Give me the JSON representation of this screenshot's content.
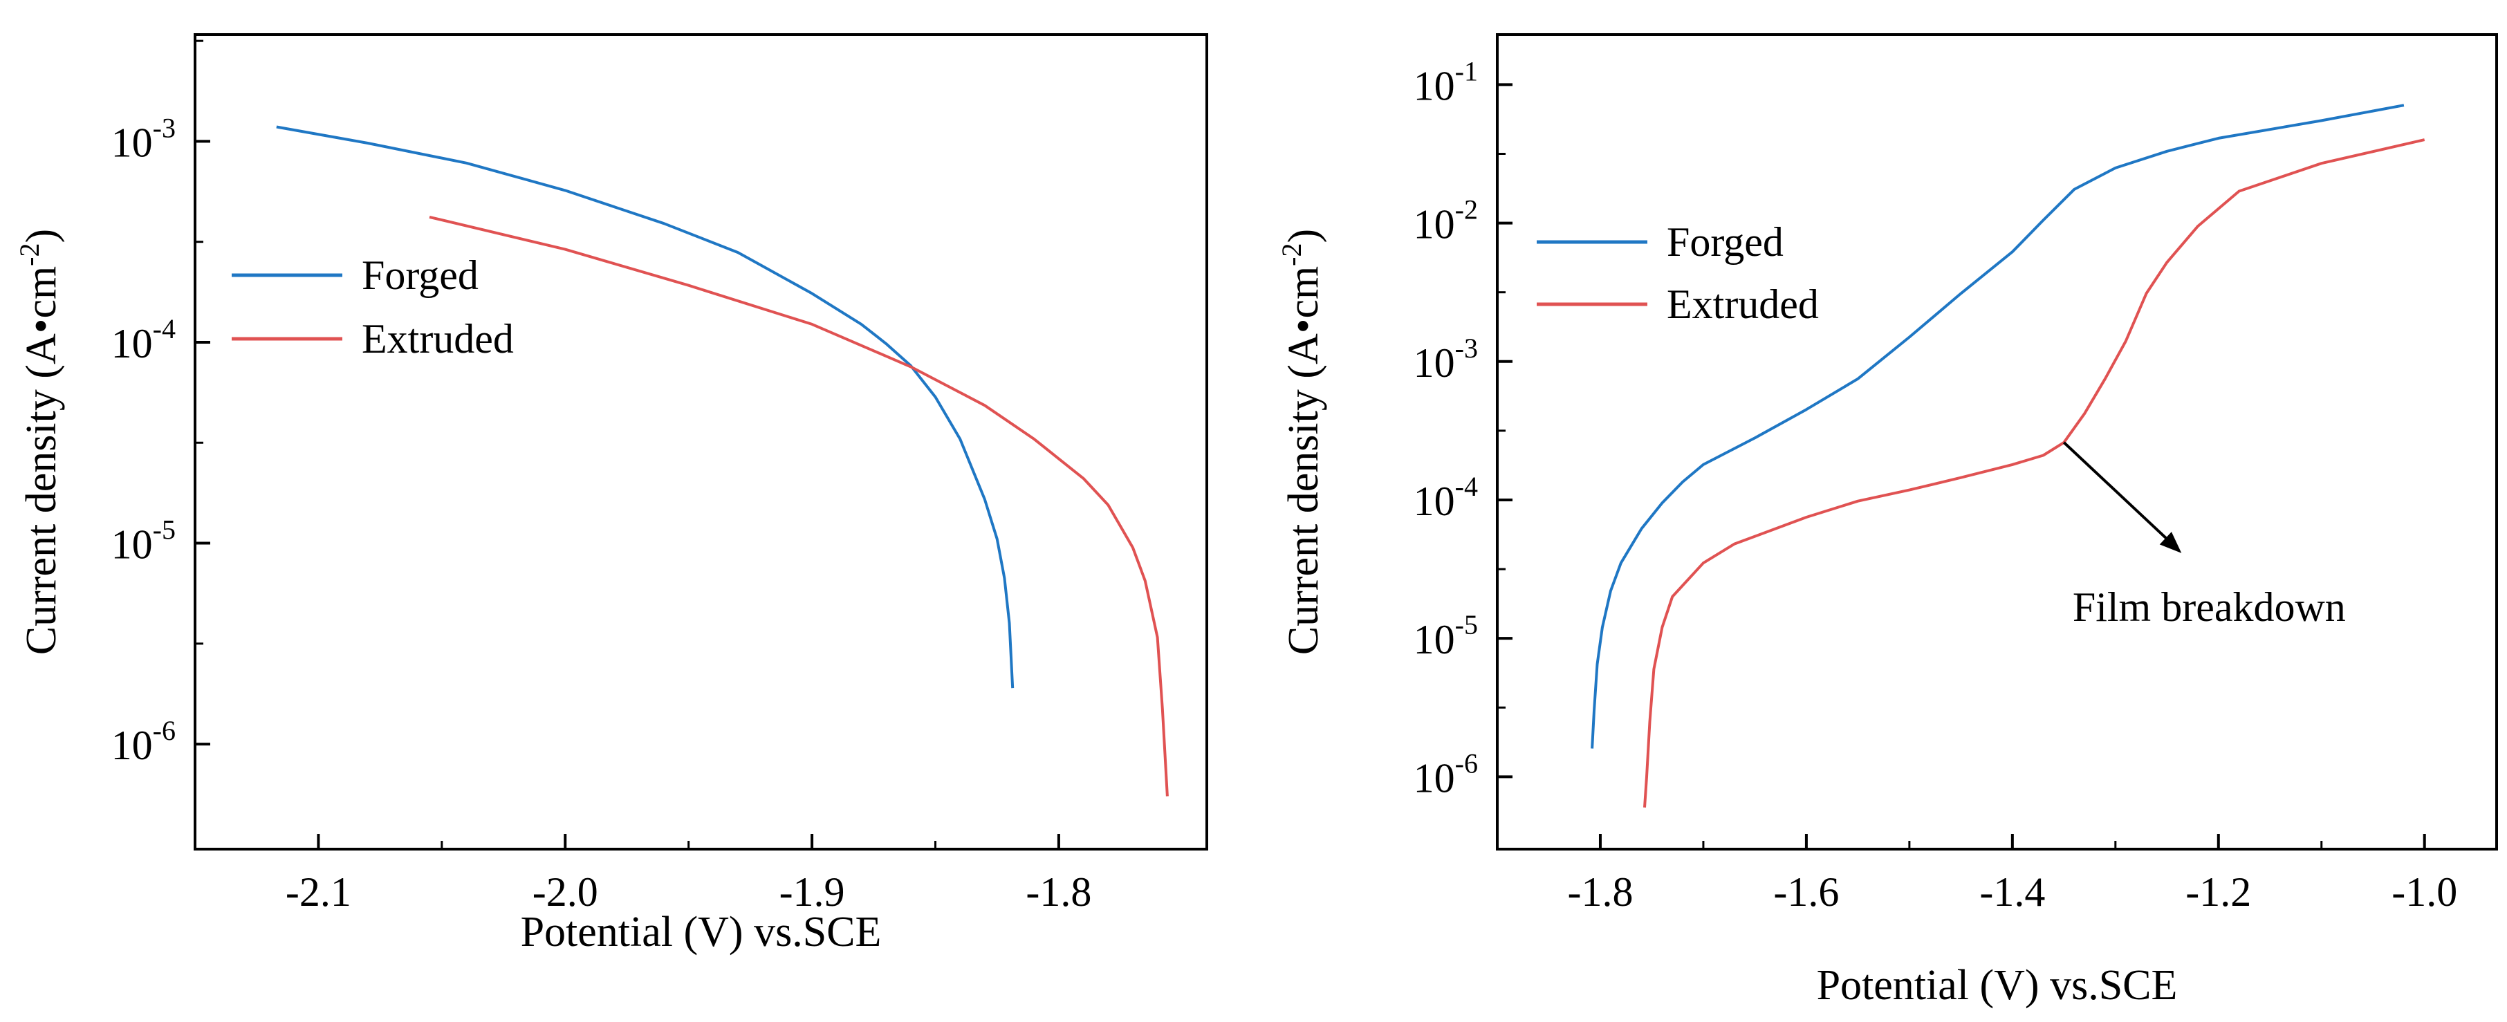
{
  "chart_data": [
    {
      "type": "line",
      "xlabel": "Potential (V) vs.SCE",
      "ylabel": "Current density (A•cm",
      "ylabel_exp": "-2",
      "ylabel_close": ")",
      "yscale": "log",
      "xlim": [
        -2.15,
        -1.74
      ],
      "ylim": [
        3e-07,
        0.0034
      ],
      "xticks": [
        {
          "value": -2.1,
          "label": "-2.1"
        },
        {
          "value": -2.0,
          "label": "-2.0"
        },
        {
          "value": -1.9,
          "label": "-1.9"
        },
        {
          "value": -1.8,
          "label": "-1.8"
        }
      ],
      "yticks": [
        {
          "value": 1e-06,
          "base": "10",
          "exp": "-6"
        },
        {
          "value": 1e-05,
          "base": "10",
          "exp": "-5"
        },
        {
          "value": 0.0001,
          "base": "10",
          "exp": "-4"
        },
        {
          "value": 0.001,
          "base": "10",
          "exp": "-3"
        }
      ],
      "legend_position": "center-left",
      "series": [
        {
          "name": "Forged",
          "color": "#1f77c4",
          "x": [
            -2.117,
            -2.08,
            -2.04,
            -2.0,
            -1.96,
            -1.93,
            -1.9,
            -1.88,
            -1.87,
            -1.86,
            -1.85,
            -1.84,
            -1.83,
            -1.825,
            -1.822,
            -1.82,
            -1.8187
          ],
          "y": [
            0.00118,
            0.00098,
            0.00078,
            0.00057,
            0.00039,
            0.00028,
            0.000175,
            0.000123,
            9.85e-05,
            7.65e-05,
            5.34e-05,
            3.3e-05,
            1.65e-05,
            1.05e-05,
            6.7e-06,
            4e-06,
            1.9e-06
          ]
        },
        {
          "name": "Extruded",
          "color": "#e05252",
          "x": [
            -2.055,
            -2.0,
            -1.95,
            -1.9,
            -1.86,
            -1.83,
            -1.81,
            -1.79,
            -1.78,
            -1.77,
            -1.765,
            -1.76,
            -1.758,
            -1.756
          ],
          "y": [
            0.00042,
            0.00029,
            0.000192,
            0.000123,
            7.55e-05,
            4.85e-05,
            3.3e-05,
            2.1e-05,
            1.55e-05,
            9.5e-06,
            6.5e-06,
            3.4e-06,
            1.5e-06,
            5.5e-07
          ]
        }
      ]
    },
    {
      "type": "line",
      "xlabel": "Potential (V) vs.SCE",
      "ylabel": "Current density (A•cm",
      "ylabel_exp": "-2",
      "ylabel_close": ")",
      "yscale": "log",
      "xlim": [
        -1.9,
        -0.93
      ],
      "ylim": [
        3e-07,
        0.23
      ],
      "xticks": [
        {
          "value": -1.8,
          "label": "-1.8"
        },
        {
          "value": -1.6,
          "label": "-1.6"
        },
        {
          "value": -1.4,
          "label": "-1.4"
        },
        {
          "value": -1.2,
          "label": "-1.2"
        },
        {
          "value": -1.0,
          "label": "-1.0"
        }
      ],
      "yticks": [
        {
          "value": 1e-06,
          "base": "10",
          "exp": "-6"
        },
        {
          "value": 1e-05,
          "base": "10",
          "exp": "-5"
        },
        {
          "value": 0.0001,
          "base": "10",
          "exp": "-4"
        },
        {
          "value": 0.001,
          "base": "10",
          "exp": "-3"
        },
        {
          "value": 0.01,
          "base": "10",
          "exp": "-2"
        },
        {
          "value": 0.1,
          "base": "10",
          "exp": "-1"
        }
      ],
      "legend_position": "top-left",
      "annotation": {
        "text": "Film breakdown",
        "x": -1.35,
        "y": 0.00026
      },
      "series": [
        {
          "name": "Forged",
          "color": "#1f77c4",
          "x": [
            -1.808,
            -1.806,
            -1.803,
            -1.798,
            -1.79,
            -1.78,
            -1.76,
            -1.74,
            -1.72,
            -1.7,
            -1.65,
            -1.6,
            -1.55,
            -1.5,
            -1.45,
            -1.4,
            -1.37,
            -1.34,
            -1.3,
            -1.25,
            -1.2,
            -1.1,
            -1.02
          ],
          "y": [
            1.6e-06,
            3e-06,
            6.5e-06,
            1.2e-05,
            2.2e-05,
            3.5e-05,
            6.2e-05,
            9.5e-05,
            0.000135,
            0.00018,
            0.00028,
            0.00045,
            0.00075,
            0.0015,
            0.0031,
            0.0062,
            0.0105,
            0.0175,
            0.025,
            0.033,
            0.041,
            0.055,
            0.071
          ]
        },
        {
          "name": "Extruded",
          "color": "#e05252",
          "x": [
            -1.757,
            -1.755,
            -1.752,
            -1.748,
            -1.74,
            -1.73,
            -1.7,
            -1.67,
            -1.6,
            -1.55,
            -1.5,
            -1.45,
            -1.4,
            -1.37,
            -1.35,
            -1.33,
            -1.31,
            -1.29,
            -1.27,
            -1.25,
            -1.22,
            -1.18,
            -1.1,
            -1.0
          ],
          "y": [
            6e-07,
            1e-06,
            2.5e-06,
            6e-06,
            1.2e-05,
            2e-05,
            3.5e-05,
            4.8e-05,
            7.5e-05,
            9.8e-05,
            0.000118,
            0.000145,
            0.00018,
            0.00021,
            0.00026,
            0.00042,
            0.00075,
            0.0014,
            0.0031,
            0.0052,
            0.0095,
            0.017,
            0.027,
            0.04
          ]
        }
      ]
    }
  ]
}
